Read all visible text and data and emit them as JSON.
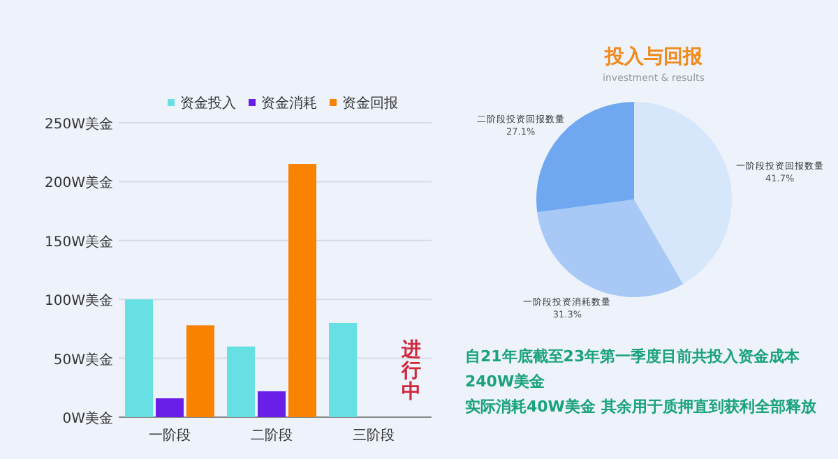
{
  "chart_data": [
    {
      "type": "bar",
      "categories": [
        "一阶段",
        "二阶段",
        "三阶段"
      ],
      "series": [
        {
          "name": "资金投入",
          "color": "#67e0e3",
          "values": [
            100,
            60,
            80
          ]
        },
        {
          "name": "资金消耗",
          "color": "#6a1fe8",
          "values": [
            16,
            22,
            null
          ]
        },
        {
          "name": "资金回报",
          "color": "#f98200",
          "values": [
            78,
            215,
            null
          ]
        }
      ],
      "ylim": [
        0,
        250
      ],
      "yticks": [
        {
          "value": 0,
          "label": "0W美金"
        },
        {
          "value": 50,
          "label": "50W美金"
        },
        {
          "value": 100,
          "label": "100W美金"
        },
        {
          "value": 150,
          "label": "150W美金"
        },
        {
          "value": 200,
          "label": "200W美金"
        },
        {
          "value": 250,
          "label": "250W美金"
        }
      ],
      "grid": "y",
      "legend": "top",
      "annotations": [
        "进行中"
      ]
    },
    {
      "type": "pie",
      "title": "投入与回报",
      "subtitle": "investment & results",
      "categories": [
        "一阶段投资回报数量",
        "一阶段投资消耗数量",
        "二阶段投资回报数量"
      ],
      "values": [
        41.7,
        31.3,
        27.1
      ],
      "value_labels": [
        "41.7%",
        "31.3%",
        "27.1%"
      ],
      "colors": [
        "#d6e6fb",
        "#a8c9f5",
        "#6fa8f0"
      ],
      "annotations": [
        "自21年底截至23年第一季度目前共投入资金成本",
        "240W美金",
        "实际消耗40W美金  其余用于质押直到获利全部释放"
      ]
    }
  ]
}
